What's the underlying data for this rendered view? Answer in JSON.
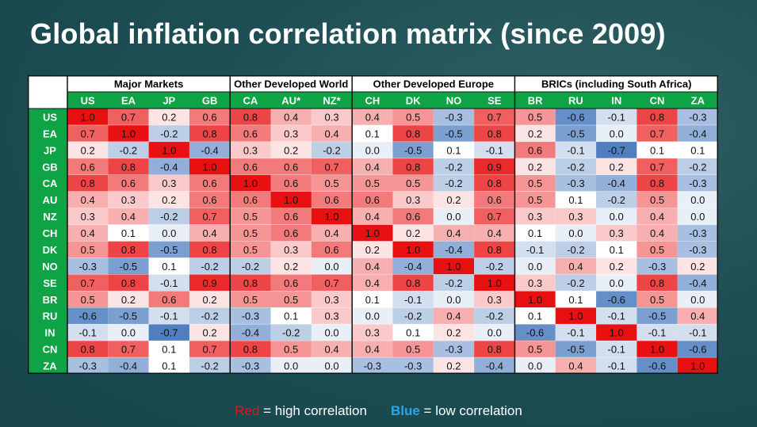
{
  "title": "Global inflation correlation matrix (since 2009)",
  "legend": {
    "red_word": "Red",
    "red_text": " = high correlation",
    "blue_word": "Blue",
    "blue_text": " = low correlation"
  },
  "colors": {
    "header_green": "#0ea345",
    "high": "#e81010",
    "low": "#4f7fc0",
    "neutral": "#ffffff"
  },
  "chart_data": {
    "type": "heatmap",
    "title": "Global inflation correlation matrix (since 2009)",
    "color_range": [
      -1,
      1
    ],
    "groups": [
      {
        "label": "Major Markets",
        "columns": [
          "US",
          "EA",
          "JP",
          "GB"
        ]
      },
      {
        "label": "Other Developed World",
        "columns": [
          "CA",
          "AU*",
          "NZ*"
        ]
      },
      {
        "label": "Other Developed Europe",
        "columns": [
          "CH",
          "DK",
          "NO",
          "SE"
        ]
      },
      {
        "label": "BRICs (including South Africa)",
        "columns": [
          "BR",
          "RU",
          "IN",
          "CN",
          "ZA"
        ]
      }
    ],
    "columns": [
      "US",
      "EA",
      "JP",
      "GB",
      "CA",
      "AU*",
      "NZ*",
      "CH",
      "DK",
      "NO",
      "SE",
      "BR",
      "RU",
      "IN",
      "CN",
      "ZA"
    ],
    "rows": [
      "US",
      "EA",
      "JP",
      "GB",
      "CA",
      "AU",
      "NZ",
      "CH",
      "DK",
      "NO",
      "SE",
      "BR",
      "RU",
      "IN",
      "CN",
      "ZA"
    ],
    "values": [
      [
        "1.0",
        "0.7",
        "0.2",
        "0.6",
        "0.8",
        "0.4",
        "0.3",
        "0.4",
        "0.5",
        "-0.3",
        "0.7",
        "0.5",
        "-0.6",
        "-0.1",
        "0.8",
        "-0.3"
      ],
      [
        "0.7",
        "1.0",
        "-0.2",
        "0.8",
        "0.6",
        "0.3",
        "0.4",
        "0.1",
        "0.8",
        "-0.5",
        "0.8",
        "0.2",
        "-0.5",
        "0.0",
        "0.7",
        "-0.4"
      ],
      [
        "0.2",
        "-0.2",
        "1.0",
        "-0.4",
        "0.3",
        "0.2",
        "-0.2",
        "0.0",
        "-0.5",
        "0.1",
        "-0.1",
        "0.6",
        "-0.1",
        "-0.7",
        "0.1",
        "0.1"
      ],
      [
        "0.6",
        "0.8",
        "-0.4",
        "1.0",
        "0.6",
        "0.6",
        "0.7",
        "0.4",
        "0.8",
        "-0.2",
        "0.9",
        "0.2",
        "-0.2",
        "0.2",
        "0.7",
        "-0.2"
      ],
      [
        "0.8",
        "0.6",
        "0.3",
        "0.6",
        "1.0",
        "0.6",
        "0.5",
        "0.5",
        "0.5",
        "-0.2",
        "0.8",
        "0.5",
        "-0.3",
        "-0.4",
        "0.8",
        "-0.3"
      ],
      [
        "0.4",
        "0.3",
        "0.2",
        "0.6",
        "0.6",
        "1.0",
        "0.6",
        "0.6",
        "0.3",
        "0.2",
        "0.6",
        "0.5",
        "0.1",
        "-0.2",
        "0.5",
        "0.0"
      ],
      [
        "0.3",
        "0.4",
        "-0.2",
        "0.7",
        "0.5",
        "0.6",
        "1.0",
        "0.4",
        "0.6",
        "0.0",
        "0.7",
        "0.3",
        "0.3",
        "0.0",
        "0.4",
        "0.0"
      ],
      [
        "0.4",
        "0.1",
        "0.0",
        "0.4",
        "0.5",
        "0.6",
        "0.4",
        "1.0",
        "0.2",
        "0.4",
        "0.4",
        "0.1",
        "0.0",
        "0.3",
        "0.4",
        "-0.3"
      ],
      [
        "0.5",
        "0.8",
        "-0.5",
        "0.8",
        "0.5",
        "0.3",
        "0.6",
        "0.2",
        "1.0",
        "-0.4",
        "0.8",
        "-0.1",
        "-0.2",
        "0.1",
        "0.5",
        "-0.3"
      ],
      [
        "-0.3",
        "-0.5",
        "0.1",
        "-0.2",
        "-0.2",
        "0.2",
        "0.0",
        "0.4",
        "-0.4",
        "1.0",
        "-0.2",
        "0.0",
        "0.4",
        "0.2",
        "-0.3",
        "0.2"
      ],
      [
        "0.7",
        "0.8",
        "-0.1",
        "0.9",
        "0.8",
        "0.6",
        "0.7",
        "0.4",
        "0.8",
        "-0.2",
        "1.0",
        "0.3",
        "-0.2",
        "0.0",
        "0.8",
        "-0.4"
      ],
      [
        "0.5",
        "0.2",
        "0.6",
        "0.2",
        "0.5",
        "0.5",
        "0.3",
        "0.1",
        "-0.1",
        "0.0",
        "0.3",
        "1.0",
        "0.1",
        "-0.6",
        "0.5",
        "0.0"
      ],
      [
        "-0.6",
        "-0.5",
        "-0.1",
        "-0.2",
        "-0.3",
        "0.1",
        "0.3",
        "0.0",
        "-0.2",
        "0.4",
        "-0.2",
        "0.1",
        "1.0",
        "-0.1",
        "-0.5",
        "0.4"
      ],
      [
        "-0.1",
        "0.0",
        "-0.7",
        "0.2",
        "-0.4",
        "-0.2",
        "0.0",
        "0.3",
        "0.1",
        "0.2",
        "0.0",
        "-0.6",
        "-0.1",
        "1.0",
        "-0.1",
        "-0.1"
      ],
      [
        "0.8",
        "0.7",
        "0.1",
        "0.7",
        "0.8",
        "0.5",
        "0.4",
        "0.4",
        "0.5",
        "-0.3",
        "0.8",
        "0.5",
        "-0.5",
        "-0.1",
        "1.0",
        "-0.6"
      ],
      [
        "-0.3",
        "-0.4",
        "0.1",
        "-0.2",
        "-0.3",
        "0.0",
        "0.0",
        "-0.3",
        "-0.3",
        "0.2",
        "-0.4",
        "0.0",
        "0.4",
        "-0.1",
        "-0.6",
        "1.0"
      ]
    ]
  }
}
